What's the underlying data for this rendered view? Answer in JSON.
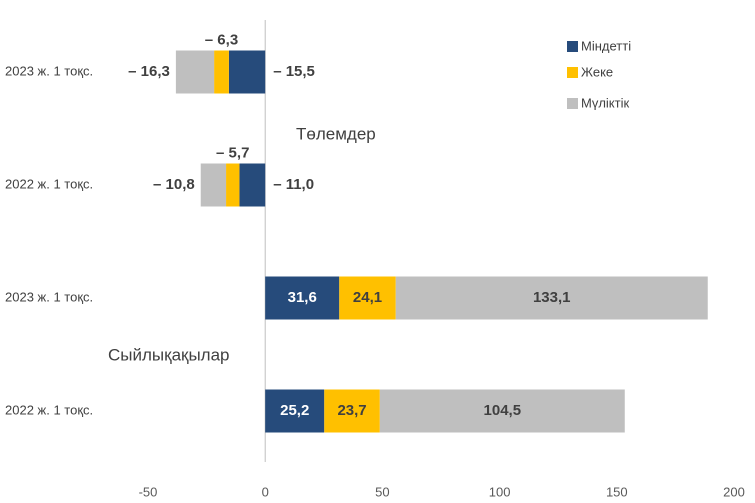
{
  "chart_data": {
    "type": "stacked-barh",
    "categories": [
      "2023 ж. 1 тоқс.",
      "2022 ж. 1 тоқс.",
      "2023 ж. 1 тоқс.",
      "2022 ж. 1 тоқс."
    ],
    "series": [
      {
        "name": "Міндетті",
        "color": "#264b7b",
        "values": [
          -15.5,
          -11.0,
          31.6,
          25.2
        ],
        "value_labels": [
          "– 15,5",
          "– 11,0",
          "31,6",
          "25,2"
        ]
      },
      {
        "name": "Жеке",
        "color": "#ffc000",
        "values": [
          -6.3,
          -5.7,
          24.1,
          23.7
        ],
        "value_labels": [
          "– 6,3",
          "– 5,7",
          "24,1",
          "23,7"
        ]
      },
      {
        "name": "Мүліктік",
        "color": "#bfbfbf",
        "values": [
          -16.3,
          -10.8,
          133.1,
          104.5
        ],
        "value_labels": [
          "– 16,3",
          "– 10,8",
          "133,1",
          "104,5"
        ]
      }
    ],
    "annotations": [
      "Төлемдер",
      "Сыйлықақылар"
    ],
    "xlim": [
      -50,
      200
    ],
    "xticks": [
      -50,
      0,
      50,
      100,
      150,
      200
    ],
    "legend": "upper right"
  }
}
